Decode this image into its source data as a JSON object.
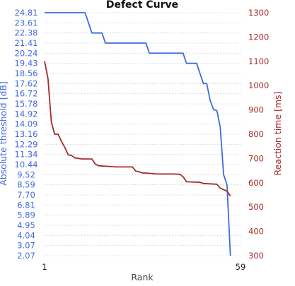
{
  "chart_data": {
    "type": "line",
    "title": "Defect Curve",
    "xlabel": "Rank",
    "xlim": [
      1,
      59
    ],
    "x_ticks": [
      "1",
      "59"
    ],
    "grid": "horizontal-dotted",
    "left_axis": {
      "label": "Absolute threshold [dB]",
      "color": "#4169e1",
      "ticks": [
        24.81,
        23.61,
        22.38,
        21.41,
        20.24,
        19.43,
        18.56,
        17.62,
        16.72,
        15.78,
        14.92,
        14.09,
        13.16,
        12.29,
        11.34,
        10.44,
        9.52,
        8.59,
        7.7,
        6.81,
        5.89,
        4.95,
        4.04,
        3.07,
        2.07
      ],
      "tick_labels": [
        "24.81",
        "23.61",
        "22.38",
        "21.41",
        "20.24",
        "19.43",
        "18.56",
        "17.62",
        "16.72",
        "15.78",
        "14.92",
        "14.09",
        "13.16",
        "12.29",
        "11.34",
        "10.44",
        "9.52",
        "8.59",
        "7.70",
        "6.81",
        "5.89",
        "4.95",
        "4.04",
        "3.07",
        "2.07"
      ]
    },
    "right_axis": {
      "label": "Reaction time [ms]",
      "color": "#a52a2a",
      "ylim": [
        300,
        1300
      ],
      "ticks": [
        300,
        400,
        500,
        600,
        700,
        800,
        900,
        1000,
        1100,
        1200,
        1300
      ],
      "tick_labels": [
        "300",
        "400",
        "500",
        "600",
        "700",
        "800",
        "900",
        "1000",
        "1100",
        "1200",
        "1300"
      ]
    },
    "series": [
      {
        "axis": "left",
        "color": "#4169e1",
        "points": [
          [
            1,
            24.81
          ],
          [
            13,
            24.81
          ],
          [
            15,
            22.38
          ],
          [
            18,
            22.38
          ],
          [
            19,
            21.41
          ],
          [
            31,
            21.41
          ],
          [
            32,
            20.24
          ],
          [
            42,
            20.24
          ],
          [
            43,
            19.43
          ],
          [
            46,
            19.43
          ],
          [
            47,
            18.56
          ],
          [
            48,
            17.62
          ],
          [
            49,
            17.62
          ],
          [
            50,
            16.12
          ],
          [
            51,
            15.3
          ],
          [
            52,
            15.2
          ],
          [
            53,
            13.8
          ],
          [
            54,
            9.52
          ],
          [
            55,
            8.59
          ],
          [
            56,
            2.07
          ]
        ]
      },
      {
        "axis": "right",
        "color": "#a52a2a",
        "points": [
          [
            1,
            1100
          ],
          [
            2,
            1030
          ],
          [
            3,
            850
          ],
          [
            4,
            800
          ],
          [
            5,
            800
          ],
          [
            6,
            770
          ],
          [
            7,
            745
          ],
          [
            8,
            715
          ],
          [
            9,
            712
          ],
          [
            10,
            702
          ],
          [
            11,
            700
          ],
          [
            12,
            698
          ],
          [
            15,
            698
          ],
          [
            16,
            677
          ],
          [
            17,
            670
          ],
          [
            22,
            665
          ],
          [
            27,
            665
          ],
          [
            28,
            648
          ],
          [
            29,
            645
          ],
          [
            30,
            640
          ],
          [
            31,
            640
          ],
          [
            34,
            636
          ],
          [
            39,
            636
          ],
          [
            41,
            635
          ],
          [
            42,
            625
          ],
          [
            43,
            604
          ],
          [
            47,
            602
          ],
          [
            48,
            597
          ],
          [
            52,
            594
          ],
          [
            53,
            578
          ],
          [
            54,
            572
          ],
          [
            55,
            565
          ],
          [
            56,
            545
          ]
        ]
      }
    ]
  }
}
